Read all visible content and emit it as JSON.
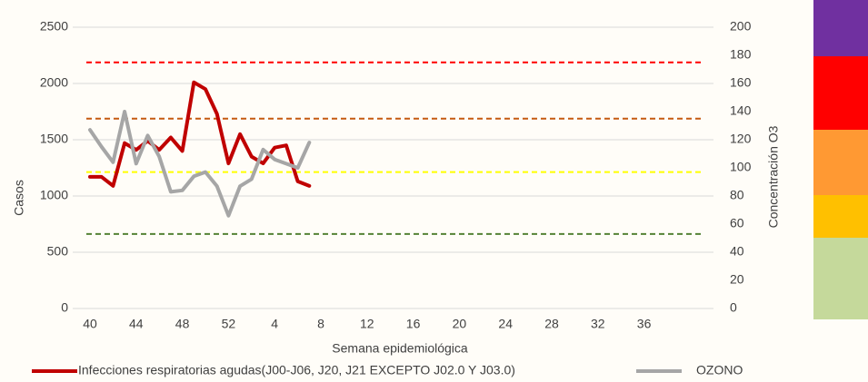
{
  "chart_data": {
    "type": "line",
    "x_label": "Semana epidemiológica",
    "y_label": "Casos",
    "y2_label": "Concentración O3",
    "categories": [
      "40",
      null,
      null,
      null,
      "44",
      null,
      null,
      null,
      "48",
      null,
      null,
      null,
      "52",
      null,
      null,
      null,
      "4",
      null,
      null,
      null,
      "8",
      null,
      null,
      null,
      "12",
      null,
      null,
      null,
      "16",
      null,
      null,
      null,
      "20",
      null,
      null,
      null,
      "24",
      null,
      null,
      null,
      "28",
      null,
      null,
      null,
      "32",
      null,
      null,
      null,
      "36",
      null,
      null,
      null,
      null
    ],
    "ylim": [
      0,
      2500
    ],
    "yticks": [
      0,
      500,
      1000,
      1500,
      2000,
      2500
    ],
    "y2lim": [
      0,
      200
    ],
    "y2ticks": [
      0,
      20,
      40,
      60,
      80,
      100,
      120,
      140,
      160,
      180,
      200
    ],
    "grid": true,
    "legend": "bottom",
    "reference_lines": [
      {
        "value": 175,
        "color": "#ff0000",
        "axis": "y2"
      },
      {
        "value": 135,
        "color": "#c55a11",
        "axis": "y2"
      },
      {
        "value": 97,
        "color": "#ffff00",
        "axis": "y2"
      },
      {
        "value": 53,
        "color": "#548235",
        "axis": "y2"
      }
    ],
    "series": [
      {
        "name": "Infecciones respiratorias agudas(J00-J06, J20, J21 EXCEPTO J02.0 Y J03.0)",
        "color": "#c00000",
        "values": [
          1170,
          1170,
          1090,
          1470,
          1410,
          1490,
          1410,
          1520,
          1400,
          2010,
          1950,
          1730,
          1290,
          1550,
          1350,
          1290,
          1430,
          1450,
          1130,
          1090,
          null,
          null,
          null,
          null,
          null,
          null,
          null,
          null,
          null,
          null,
          null,
          null,
          null,
          null,
          null,
          null,
          null,
          null,
          null,
          null,
          null,
          null,
          null,
          null,
          null,
          null,
          null,
          null,
          null,
          null,
          null,
          null,
          null
        ]
      },
      {
        "name": "OZONO",
        "color": "#a6a6a6",
        "axis": "y2",
        "values": [
          127,
          115,
          104,
          140,
          103,
          123,
          108,
          83,
          84,
          94,
          97,
          87,
          66,
          87,
          92,
          113,
          106,
          103,
          100,
          118,
          null,
          null,
          null,
          null,
          null,
          null,
          null,
          null,
          null,
          null,
          null,
          null,
          null,
          null,
          null,
          null,
          null,
          null,
          null,
          null,
          null,
          null,
          null,
          null,
          null,
          null,
          null,
          null,
          null,
          null,
          null,
          null,
          null
        ]
      }
    ]
  }
}
